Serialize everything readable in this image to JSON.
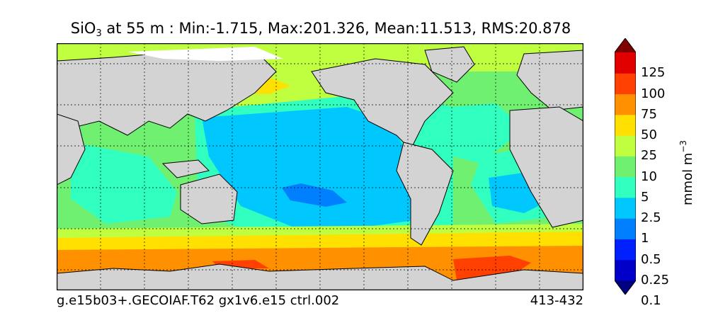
{
  "title": {
    "variable": "SiO",
    "subscript": "3",
    "rest": " at 55 m : Min:-1.715, Max:201.326, Mean:11.513, RMS:20.878"
  },
  "footer": {
    "case": "g.e15b03+.GECOIAF.T62 gx1v6.e15 ctrl.002",
    "years": "413-432"
  },
  "colorbar": {
    "units_base": "mmol m",
    "units_exp": "−3",
    "ticks": [
      "125",
      "100",
      "75",
      "50",
      "25",
      "10",
      "5",
      "2.5",
      "1",
      "0.5",
      "0.25",
      "0.1"
    ],
    "colors": [
      "#000080",
      "#0000c8",
      "#0020ff",
      "#0080ff",
      "#00c8ff",
      "#30ffc0",
      "#70f070",
      "#c0ff40",
      "#ffe000",
      "#ff9000",
      "#ff4000",
      "#e00000",
      "#800000"
    ]
  },
  "map_colors": {
    "land": "#d3d3d3",
    "ice": "#ffffff"
  }
}
